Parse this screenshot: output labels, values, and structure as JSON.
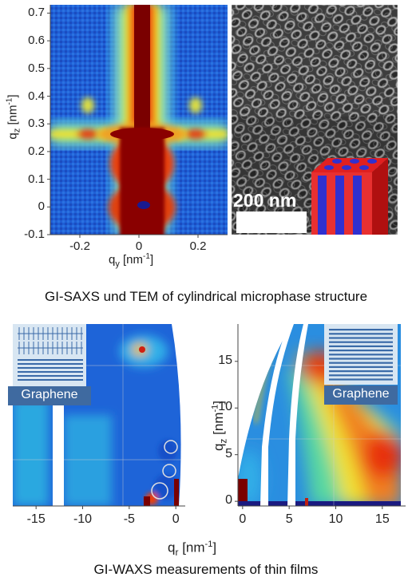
{
  "figure": {
    "top": {
      "saxs_panel": {
        "xlabel_main": "q",
        "xlabel_sub": "y",
        "xlabel_unit": " [nm",
        "xlabel_exp": "-1",
        "xlabel_close": "]",
        "ylabel_main": "q",
        "ylabel_sub": "z",
        "ylabel_unit": " [nm",
        "ylabel_exp": "-1",
        "ylabel_close": "]"
      },
      "tem_panel": {
        "scale_bar_label": "200 nm",
        "inset_description_icon": "cylinder-array-icon"
      },
      "caption": "GI-SAXS und TEM of cylindrical microphase structure"
    },
    "bottom": {
      "left_panel": {
        "badge_label": "Graphene"
      },
      "right_panel": {
        "badge_label": "Graphene",
        "ylabel_main": "q",
        "ylabel_sub": "z",
        "ylabel_unit": " [nm",
        "ylabel_exp": "-1",
        "ylabel_close": "]"
      },
      "xlabel_main": "q",
      "xlabel_sub": "r",
      "xlabel_unit": " [nm",
      "xlabel_exp": "-1",
      "xlabel_close": "]",
      "caption": "GI-WAXS measurements of thin films"
    }
  },
  "chart_data": [
    {
      "type": "heatmap",
      "xlabel": "qy [nm-1]",
      "ylabel": "qz [nm-1]",
      "xlim": [
        -0.3,
        0.3
      ],
      "ylim": [
        -0.1,
        0.73
      ],
      "x_ticks": [
        "-0.2",
        "0",
        "0.2"
      ],
      "y_ticks": [
        "-0.1",
        "0",
        "0.1",
        "0.2",
        "0.3",
        "0.4",
        "0.5",
        "0.6",
        "0.7"
      ]
    },
    {
      "type": "heatmap",
      "xlabel": "qr [nm-1]",
      "xlim": [
        -17.5,
        0.5
      ],
      "x_ticks": [
        "-15",
        "-10",
        "-5",
        "0"
      ]
    },
    {
      "type": "heatmap",
      "xlabel": "qr [nm-1]",
      "ylabel": "qz [nm-1]",
      "xlim": [
        -0.5,
        17.5
      ],
      "ylim": [
        -0.5,
        19
      ],
      "x_ticks": [
        "0",
        "5",
        "10",
        "15"
      ],
      "y_ticks": [
        "0",
        "5",
        "10",
        "15"
      ]
    }
  ],
  "colors": {
    "dark_red": "#7a0000",
    "red": "#e01010",
    "yellow": "#f2e52a",
    "cyan": "#38c8e8",
    "blue": "#1c5ad0",
    "navy": "#0a2a8a",
    "badge_bg": "#3f6aa0",
    "badge_text": "#ffffff"
  }
}
